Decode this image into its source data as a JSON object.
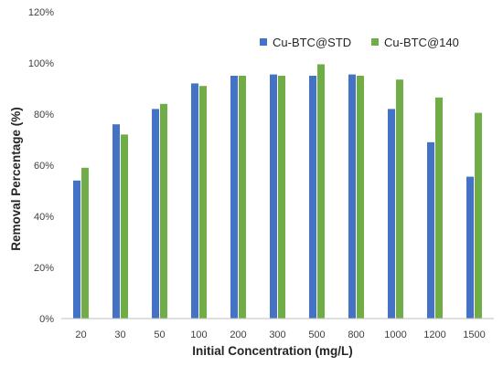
{
  "chart_data": {
    "type": "bar",
    "title": "",
    "xlabel": "Initial Concentration (mg/L)",
    "ylabel": "Removal Percentage (%)",
    "ylim": [
      0,
      120
    ],
    "y_ticks": [
      "0%",
      "20%",
      "40%",
      "60%",
      "80%",
      "100%",
      "120%"
    ],
    "y_tick_values": [
      0,
      20,
      40,
      60,
      80,
      100,
      120
    ],
    "categories": [
      "20",
      "30",
      "50",
      "100",
      "200",
      "300",
      "500",
      "800",
      "1000",
      "1200",
      "1500"
    ],
    "series": [
      {
        "name": "Cu-BTC@STD",
        "color": "#4472c4",
        "values": [
          54,
          76,
          82,
          92,
          95,
          95.5,
          95,
          95.5,
          82,
          69,
          55.5
        ]
      },
      {
        "name": "Cu-BTC@140",
        "color": "#70ad47",
        "values": [
          59,
          72,
          84,
          91,
          95,
          95,
          99.5,
          95,
          93.5,
          86.5,
          80.5
        ]
      }
    ],
    "grid": false,
    "legend_position": "top-right"
  }
}
